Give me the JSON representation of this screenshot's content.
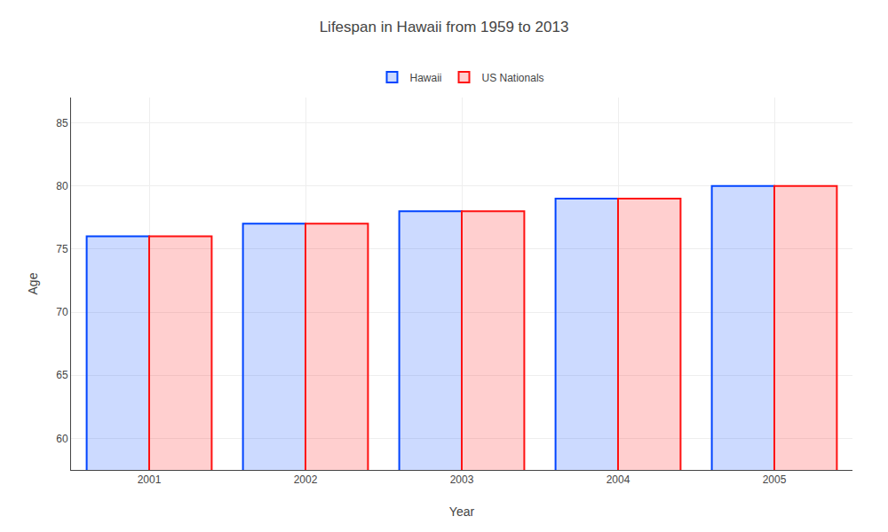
{
  "chart_data": {
    "type": "bar",
    "title": "Lifespan in Hawaii from 1959 to 2013",
    "xlabel": "Year",
    "ylabel": "Age",
    "categories": [
      "2001",
      "2002",
      "2003",
      "2004",
      "2005"
    ],
    "series": [
      {
        "name": "Hawaii",
        "color": "#0044ff",
        "values": [
          76,
          77,
          78,
          79,
          80
        ]
      },
      {
        "name": "US Nationals",
        "color": "#ff1111",
        "values": [
          76,
          77,
          78,
          79,
          80
        ]
      }
    ],
    "ylim": [
      57.5,
      87
    ],
    "yticks": [
      60,
      65,
      70,
      75,
      80,
      85
    ],
    "grid": true,
    "legend": "top"
  }
}
